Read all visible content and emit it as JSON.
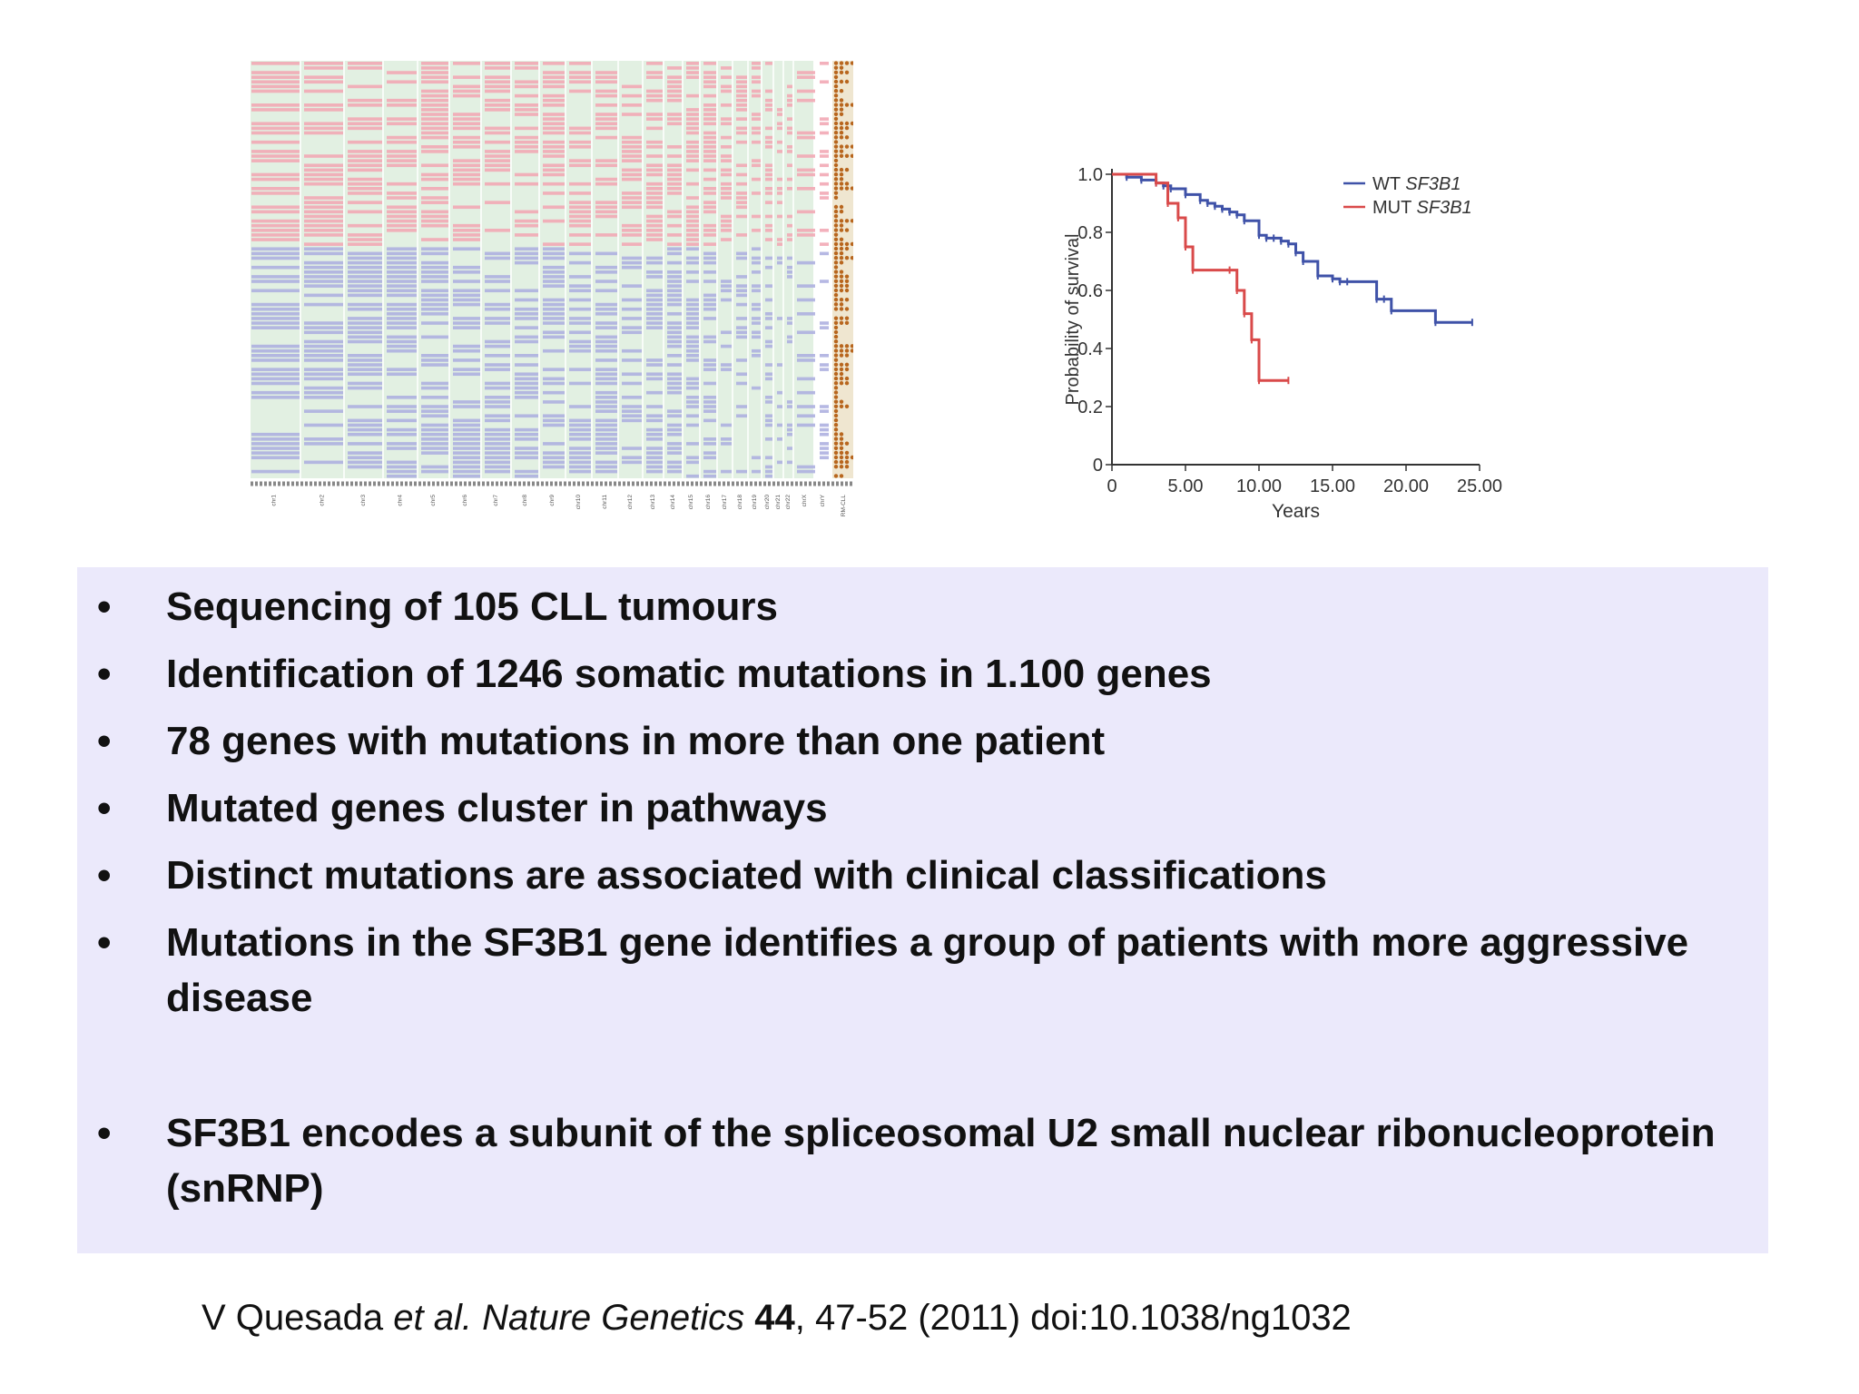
{
  "figure_heatmap": {
    "column_labels": [
      "chr1",
      "chr2",
      "chr3",
      "chr4",
      "chr5",
      "chr6",
      "chr7",
      "chr8",
      "chr9",
      "chr10",
      "chr11",
      "chr12",
      "chr13",
      "chr14",
      "chr15",
      "chr16",
      "chr17",
      "chr18",
      "chr19",
      "chr20",
      "chr21",
      "chr22",
      "chrX",
      "chrY",
      "RM-CLL"
    ],
    "colors": {
      "upper_rows": "#f2a8b5",
      "lower_rows": "#aeb0e0",
      "background": "#e2f0e2",
      "dots": "#b8661e"
    }
  },
  "chart_data": {
    "type": "line",
    "subtype": "kaplan-meier-step",
    "xlabel": "Years",
    "ylabel": "Probability of survival",
    "x_ticks": [
      "0",
      "5.00",
      "10.00",
      "15.00",
      "20.00",
      "25.00"
    ],
    "y_ticks": [
      "0",
      "0.2",
      "0.4",
      "0.6",
      "0.8",
      "1.0"
    ],
    "xlim": [
      0,
      25
    ],
    "ylim": [
      0,
      1
    ],
    "legend_position": "top-right",
    "series": [
      {
        "name": "WT SF3B1",
        "legend_prefix": "WT ",
        "legend_gene": "SF3B1",
        "color": "#3f52a8",
        "x": [
          0,
          1,
          2,
          3,
          3.5,
          4,
          5,
          6,
          6.5,
          7,
          7.5,
          8,
          8.5,
          9,
          10,
          10.5,
          11,
          11.5,
          12,
          12.5,
          13,
          14,
          15,
          15.5,
          16,
          18,
          18.5,
          19,
          22,
          24.5
        ],
        "y": [
          1.0,
          0.99,
          0.98,
          0.97,
          0.96,
          0.95,
          0.93,
          0.91,
          0.9,
          0.89,
          0.88,
          0.87,
          0.86,
          0.84,
          0.79,
          0.78,
          0.78,
          0.77,
          0.76,
          0.73,
          0.7,
          0.65,
          0.64,
          0.63,
          0.63,
          0.57,
          0.57,
          0.53,
          0.49,
          0.49
        ]
      },
      {
        "name": "MUT SF3B1",
        "legend_prefix": "MUT ",
        "legend_gene": "SF3B1",
        "color": "#d94a4a",
        "x": [
          0,
          3,
          3.8,
          4.5,
          5,
          5.5,
          8,
          8.5,
          9,
          9.5,
          10,
          12
        ],
        "y": [
          1.0,
          0.97,
          0.9,
          0.85,
          0.75,
          0.67,
          0.67,
          0.6,
          0.52,
          0.43,
          0.29,
          0.29
        ]
      }
    ]
  },
  "bullets": [
    {
      "text": "Sequencing of 105 CLL tumours"
    },
    {
      "text": "Identification of 1246 somatic mutations in 1.100 genes"
    },
    {
      "text": "78 genes with mutations in more than one patient"
    },
    {
      "text": "Mutated genes cluster in pathways"
    },
    {
      "text": "Distinct mutations are associated with clinical classifications"
    },
    {
      "text": "Mutations in the SF3B1 gene identifies a group of patients with more aggressive disease"
    },
    {
      "text": "SF3B1 encodes a subunit of the spliceosomal U2 small nuclear ribonucleoprotein (snRNP)"
    }
  ],
  "bullet_symbol": "•",
  "citation": {
    "author": "V Quesada ",
    "etal": "et al.",
    "journal": " Nature Genetics ",
    "volume": "44",
    "rest": ", 47-52 (2011) doi:10.1038/ng1032"
  }
}
